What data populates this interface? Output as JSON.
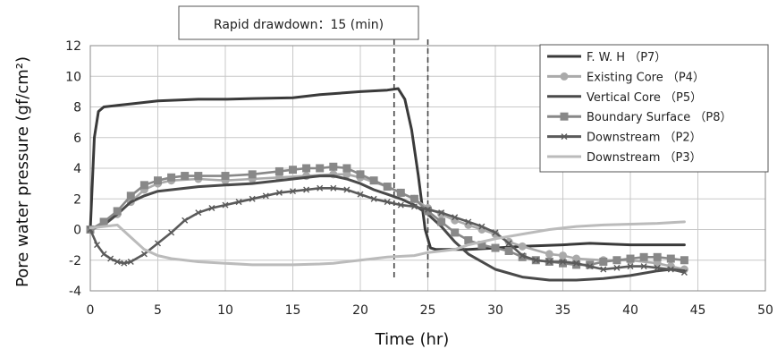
{
  "chart_data": {
    "type": "line",
    "xlabel": "Time (hr)",
    "ylabel": "Pore water pressure (gf/cm²)",
    "xlim": [
      0,
      50
    ],
    "ylim": [
      -4,
      12
    ],
    "xticks": [
      0,
      5,
      10,
      15,
      20,
      25,
      30,
      35,
      40,
      45,
      50
    ],
    "yticks": [
      -4,
      -2,
      0,
      2,
      4,
      6,
      8,
      10,
      12
    ],
    "grid": true,
    "legend_position": "top-right",
    "annotation": {
      "text": "Rapid drawdown：15 (min)",
      "vlines": [
        22.5,
        25
      ]
    },
    "series": [
      {
        "name": "F. W. H （P7）",
        "color": "#3a3a3a",
        "marker": "none",
        "x": [
          0,
          0.3,
          0.6,
          1,
          2,
          3,
          5,
          8,
          10,
          12,
          15,
          17,
          20,
          22,
          22.8,
          23.3,
          23.8,
          24.3,
          24.8,
          25.2,
          25.6,
          26,
          28,
          30,
          32,
          35,
          37,
          40,
          42,
          44
        ],
        "y": [
          0,
          6,
          7.7,
          8,
          8.1,
          8.2,
          8.4,
          8.5,
          8.5,
          8.55,
          8.6,
          8.8,
          9.0,
          9.1,
          9.2,
          8.5,
          6.5,
          3.5,
          0,
          -1.2,
          -1.3,
          -1.3,
          -1.3,
          -1.2,
          -1.1,
          -1.0,
          -0.9,
          -1.0,
          -1.0,
          -1.0
        ]
      },
      {
        "name": "Existing Core （P4）",
        "color": "#aaaaaa",
        "marker": "circle",
        "x": [
          0,
          1,
          2,
          3,
          4,
          5,
          6,
          8,
          10,
          12,
          14,
          16,
          18,
          19,
          20,
          22,
          23,
          24,
          25,
          26,
          27,
          28,
          29,
          30,
          31,
          32,
          34,
          35,
          36,
          38,
          40,
          42,
          43,
          44
        ],
        "y": [
          0,
          0.4,
          1.0,
          1.8,
          2.6,
          3.0,
          3.2,
          3.3,
          3.2,
          3.3,
          3.4,
          3.5,
          3.6,
          3.6,
          3.4,
          2.8,
          2.4,
          2.0,
          1.4,
          1.0,
          0.6,
          0.3,
          0.0,
          -0.3,
          -0.8,
          -1.1,
          -1.6,
          -1.7,
          -1.9,
          -2.0,
          -2.0,
          -2.2,
          -2.4,
          -2.6
        ]
      },
      {
        "name": "Vertical Core （P5）",
        "color": "#4a4a4a",
        "marker": "none",
        "x": [
          0,
          1,
          2,
          3,
          4,
          5,
          8,
          10,
          12,
          15,
          17,
          18,
          19,
          20,
          21,
          22,
          23,
          24,
          25,
          26,
          27,
          28,
          30,
          32,
          34,
          35,
          36,
          38,
          40,
          42,
          43,
          44
        ],
        "y": [
          0,
          0.3,
          1.0,
          1.8,
          2.2,
          2.5,
          2.8,
          2.9,
          3.0,
          3.3,
          3.5,
          3.5,
          3.3,
          3.0,
          2.6,
          2.3,
          2.0,
          1.6,
          1.0,
          0.2,
          -0.8,
          -1.6,
          -2.6,
          -3.1,
          -3.3,
          -3.3,
          -3.3,
          -3.2,
          -3.0,
          -2.7,
          -2.6,
          -2.7
        ]
      },
      {
        "name": "Boundary Surface （P8）",
        "color": "#888888",
        "marker": "square",
        "x": [
          0,
          1,
          2,
          3,
          4,
          5,
          6,
          7,
          8,
          10,
          12,
          14,
          15,
          16,
          17,
          18,
          19,
          20,
          21,
          22,
          23,
          24,
          25,
          26,
          27,
          28,
          29,
          30,
          31,
          32,
          33,
          34,
          35,
          36,
          37,
          38,
          39,
          40,
          41,
          42,
          43,
          44
        ],
        "y": [
          0,
          0.5,
          1.2,
          2.2,
          2.9,
          3.2,
          3.4,
          3.5,
          3.5,
          3.5,
          3.6,
          3.8,
          3.9,
          4.0,
          4.0,
          4.1,
          4.0,
          3.6,
          3.2,
          2.8,
          2.4,
          2.0,
          1.2,
          0.5,
          -0.2,
          -0.7,
          -1.0,
          -1.2,
          -1.4,
          -1.8,
          -2.0,
          -2.1,
          -2.2,
          -2.3,
          -2.3,
          -2.1,
          -2.0,
          -1.9,
          -1.8,
          -1.8,
          -1.9,
          -2.0
        ]
      },
      {
        "name": "Downstream （P2）",
        "color": "#5a5a5a",
        "marker": "x",
        "x": [
          0,
          0.5,
          1,
          1.5,
          2,
          2.5,
          3,
          4,
          5,
          6,
          7,
          8,
          9,
          10,
          11,
          12,
          13,
          14,
          15,
          16,
          17,
          18,
          19,
          20,
          21,
          22,
          23,
          24,
          25,
          26,
          27,
          28,
          29,
          30,
          31,
          32,
          33,
          34,
          35,
          36,
          37,
          38,
          39,
          40,
          41,
          42,
          43,
          44
        ],
        "y": [
          0,
          -1.0,
          -1.6,
          -1.9,
          -2.1,
          -2.2,
          -2.1,
          -1.6,
          -0.9,
          -0.2,
          0.6,
          1.1,
          1.4,
          1.6,
          1.8,
          2.0,
          2.2,
          2.4,
          2.5,
          2.6,
          2.7,
          2.7,
          2.6,
          2.3,
          2.0,
          1.8,
          1.6,
          1.5,
          1.3,
          1.1,
          0.8,
          0.5,
          0.2,
          -0.2,
          -0.9,
          -1.7,
          -2.0,
          -2.1,
          -2.1,
          -2.2,
          -2.4,
          -2.6,
          -2.5,
          -2.4,
          -2.4,
          -2.5,
          -2.6,
          -2.8
        ]
      },
      {
        "name": "Downstream （P3）",
        "color": "#bbbbbb",
        "marker": "none",
        "x": [
          0,
          1,
          2,
          3,
          4,
          5,
          6,
          8,
          10,
          12,
          15,
          17,
          18,
          20,
          22,
          24,
          25,
          27,
          28,
          30,
          32,
          34,
          35,
          36,
          38,
          40,
          42,
          43,
          44
        ],
        "y": [
          0.1,
          0.2,
          0.3,
          -0.5,
          -1.3,
          -1.7,
          -1.9,
          -2.1,
          -2.2,
          -2.3,
          -2.3,
          -2.25,
          -2.2,
          -2.0,
          -1.8,
          -1.7,
          -1.5,
          -1.3,
          -1.0,
          -0.6,
          -0.3,
          0.0,
          0.1,
          0.2,
          0.3,
          0.35,
          0.4,
          0.45,
          0.5
        ]
      }
    ]
  }
}
